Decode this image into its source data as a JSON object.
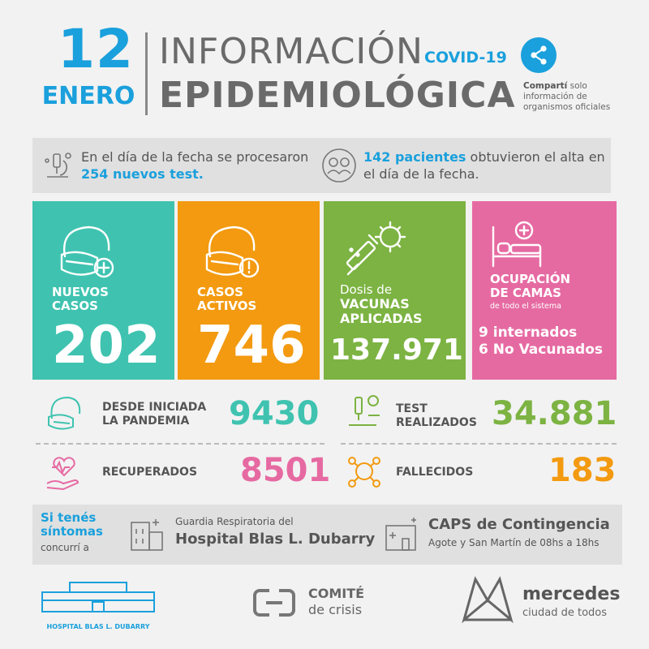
{
  "header": {
    "day": "12",
    "month": "ENERO",
    "title_line1": "INFORMACIÓN",
    "covid": "COVID-19",
    "title_line2": "EPIDEMIOLÓGICA",
    "share_bold": "Compartí",
    "share_rest": " solo información de organismos oficiales"
  },
  "info": {
    "left_pre": "En el día de la fecha se procesaron ",
    "left_hl": "254 nuevos test.",
    "right_hl": "142 pacientes",
    "right_post": " obtuvieron el alta en el día de la fecha."
  },
  "cards": {
    "nuevos": {
      "label_1": "NUEVOS",
      "label_2": "CASOS",
      "value": "202",
      "color": "#3fc3b0"
    },
    "activos": {
      "label_1": "CASOS",
      "label_2": "ACTIVOS",
      "value": "746",
      "color": "#f39a10"
    },
    "vacunas": {
      "label_pre": "Dosis de",
      "label_1": "VACUNAS",
      "label_2": "APLICADAS",
      "value": "137.971",
      "color": "#7cb342"
    },
    "camas": {
      "label_1": "OCUPACIÓN",
      "label_2": "DE CAMAS",
      "sub": "de todo el sistema",
      "line_1": "9 internados",
      "line_2": "6 No Vacunados",
      "color": "#e66aa2"
    }
  },
  "stats": {
    "pandemia": {
      "label_1": "DESDE INICIADA",
      "label_2": "LA PANDEMIA",
      "value": "9430",
      "color": "#3fc3b0"
    },
    "test": {
      "label_1": "TEST",
      "label_2": "REALIZADOS",
      "value": "34.881",
      "color": "#7cb342"
    },
    "recuperados": {
      "label": "RECUPERADOS",
      "value": "8501",
      "color": "#e66aa2"
    },
    "fallecidos": {
      "label": "FALLECIDOS",
      "value": "183",
      "color": "#f39a10"
    }
  },
  "guardia": {
    "sintomas_1": "Si tenés",
    "sintomas_2": "síntomas",
    "concurri": "concurrí a",
    "hosp_small": "Guardia Respiratoria del",
    "hosp_big": "Hospital Blas L. Dubarry",
    "caps_big": "CAPS de Contingencia",
    "caps_small": "Agote y San Martín de 08hs a 18hs"
  },
  "footer": {
    "hospital": "HOSPITAL BLAS L. DUBARRY",
    "comite_1": "COMITÉ",
    "comite_2": "de crisis",
    "mercedes_1": "mercedes",
    "mercedes_2": "ciudad de todos"
  }
}
